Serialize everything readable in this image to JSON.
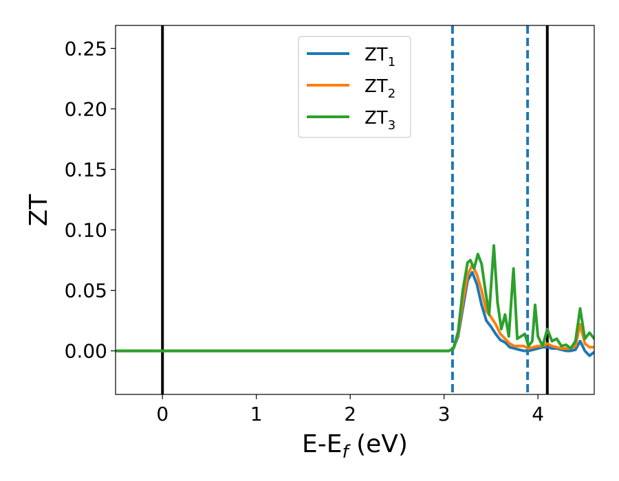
{
  "chart_data": {
    "type": "line",
    "xlabel_main": "E-E",
    "xlabel_sub": "f",
    "xlabel_unit": " (eV)",
    "ylabel": "ZT",
    "xlim": [
      -0.5,
      4.6
    ],
    "ylim": [
      -0.036,
      0.269
    ],
    "xticks": [
      0,
      1,
      2,
      3,
      4
    ],
    "xtick_labels": [
      "0",
      "1",
      "2",
      "3",
      "4"
    ],
    "yticks": [
      0.0,
      0.05,
      0.1,
      0.15,
      0.2,
      0.25
    ],
    "ytick_labels": [
      "0.00",
      "0.05",
      "0.10",
      "0.15",
      "0.20",
      "0.25"
    ],
    "grid": false,
    "legend_position": "top-center",
    "vlines": [
      {
        "x": 0.0,
        "style": "solid",
        "color": "#000000"
      },
      {
        "x": 4.1,
        "style": "solid",
        "color": "#000000"
      },
      {
        "x": 3.09,
        "style": "dashed",
        "color": "#1f77b4"
      },
      {
        "x": 3.89,
        "style": "dashed",
        "color": "#1f77b4"
      }
    ],
    "series": [
      {
        "legend_main": "ZT",
        "legend_sub": "1",
        "color": "#1f77b4",
        "x": [
          -0.5,
          3.0,
          3.05,
          3.1,
          3.15,
          3.2,
          3.25,
          3.3,
          3.35,
          3.4,
          3.45,
          3.5,
          3.55,
          3.6,
          3.65,
          3.7,
          3.75,
          3.8,
          3.85,
          3.9,
          3.95,
          4.0,
          4.05,
          4.1,
          4.15,
          4.2,
          4.25,
          4.3,
          4.35,
          4.4,
          4.45,
          4.5,
          4.55,
          4.6
        ],
        "y": [
          0.0,
          0.0,
          0.0,
          0.002,
          0.012,
          0.035,
          0.058,
          0.065,
          0.055,
          0.038,
          0.025,
          0.02,
          0.014,
          0.009,
          0.007,
          0.003,
          0.002,
          0.001,
          0.0,
          0.0,
          0.001,
          0.002,
          0.003,
          0.003,
          0.002,
          0.002,
          0.001,
          0.0,
          0.0,
          0.001,
          0.008,
          0.0,
          -0.004,
          -0.001
        ]
      },
      {
        "legend_main": "ZT",
        "legend_sub": "2",
        "color": "#ff7f0e",
        "x": [
          -0.5,
          3.0,
          3.05,
          3.1,
          3.15,
          3.2,
          3.25,
          3.3,
          3.35,
          3.4,
          3.45,
          3.5,
          3.55,
          3.6,
          3.65,
          3.7,
          3.75,
          3.8,
          3.85,
          3.9,
          3.95,
          4.0,
          4.05,
          4.1,
          4.15,
          4.2,
          4.25,
          4.3,
          4.35,
          4.4,
          4.45,
          4.5,
          4.55,
          4.6
        ],
        "y": [
          0.0,
          0.0,
          0.0,
          0.002,
          0.014,
          0.04,
          0.063,
          0.071,
          0.063,
          0.05,
          0.033,
          0.028,
          0.022,
          0.014,
          0.01,
          0.006,
          0.004,
          0.004,
          0.004,
          0.002,
          0.003,
          0.004,
          0.004,
          0.006,
          0.004,
          0.003,
          0.002,
          0.002,
          0.002,
          0.004,
          0.022,
          0.006,
          0.003,
          0.003
        ]
      },
      {
        "legend_main": "ZT",
        "legend_sub": "3",
        "color": "#2ca02c",
        "x": [
          -0.5,
          3.0,
          3.05,
          3.1,
          3.15,
          3.2,
          3.25,
          3.28,
          3.32,
          3.36,
          3.4,
          3.44,
          3.48,
          3.53,
          3.57,
          3.61,
          3.65,
          3.69,
          3.74,
          3.78,
          3.82,
          3.86,
          3.9,
          3.94,
          3.97,
          4.0,
          4.05,
          4.1,
          4.15,
          4.2,
          4.25,
          4.3,
          4.35,
          4.4,
          4.45,
          4.5,
          4.55,
          4.6
        ],
        "y": [
          0.0,
          0.0,
          0.0,
          0.002,
          0.016,
          0.05,
          0.073,
          0.075,
          0.068,
          0.08,
          0.072,
          0.05,
          0.03,
          0.087,
          0.04,
          0.018,
          0.03,
          0.012,
          0.068,
          0.01,
          0.012,
          0.014,
          0.004,
          0.008,
          0.038,
          0.012,
          0.004,
          0.018,
          0.008,
          0.01,
          0.004,
          0.005,
          0.002,
          0.008,
          0.035,
          0.01,
          0.015,
          0.01
        ]
      }
    ]
  }
}
